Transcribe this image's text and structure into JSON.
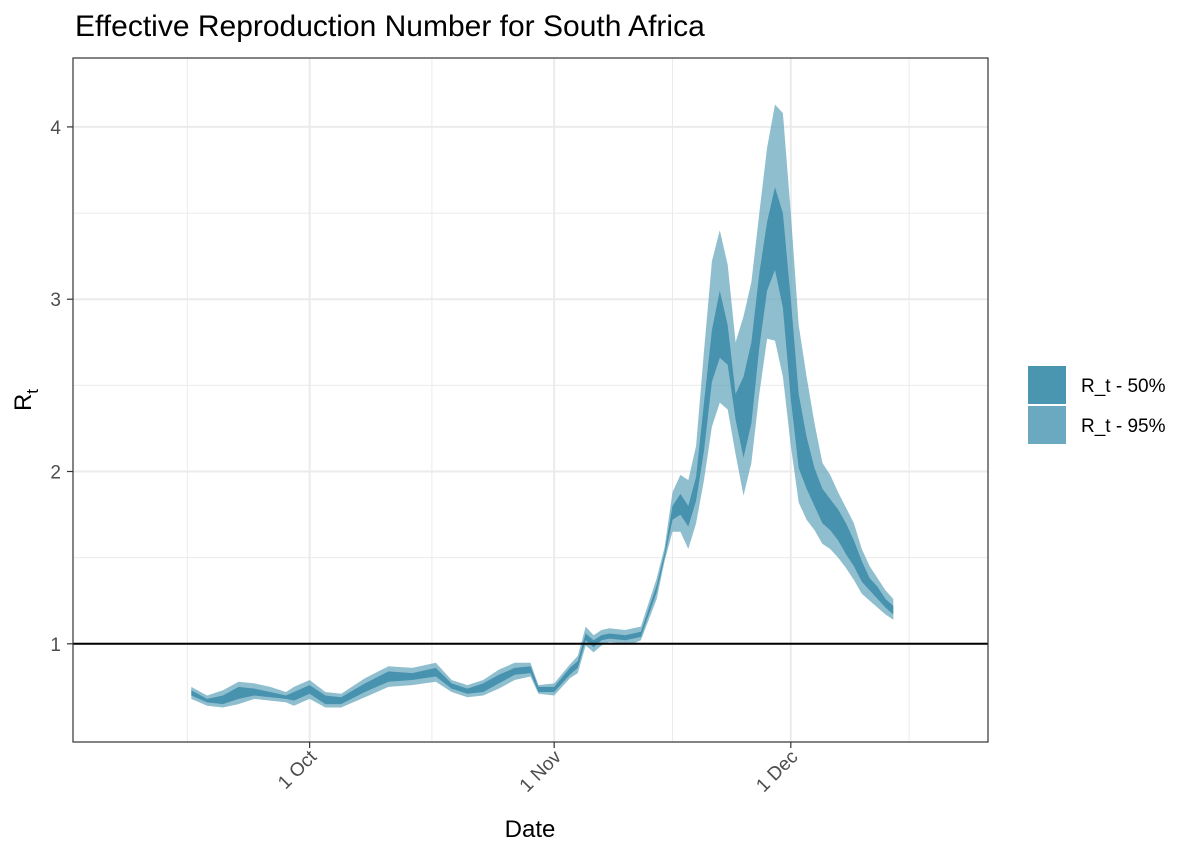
{
  "chart_data": {
    "type": "area",
    "title": "Effective Reproduction Number for South Africa",
    "xlabel": "Date",
    "ylabel": "R",
    "ylabel_subscript": "t",
    "xlim": [
      "2020-09-01",
      "2020-12-26"
    ],
    "ylim": [
      0.43,
      4.4
    ],
    "x_ticks": [
      {
        "date": "2020-10-01",
        "label": "1 Oct"
      },
      {
        "date": "2020-11-01",
        "label": "1 Nov"
      },
      {
        "date": "2020-12-01",
        "label": "1 Dec"
      }
    ],
    "y_ticks": [
      1,
      2,
      3,
      4
    ],
    "reference_line": 1,
    "grid": true,
    "legend": {
      "position": "right",
      "entries": [
        {
          "label": "R_t - 50%",
          "color": "#4a96b0"
        },
        {
          "label": "R_t - 95%",
          "color": "#6aa9bf"
        }
      ]
    },
    "colors": {
      "band_50": "#3b8aa8",
      "band_95": "#6aa9bf",
      "reference_line": "#000000",
      "grid": "#ebebeb"
    },
    "series": [
      {
        "name": "R_t - 95%",
        "x": [
          "2020-09-16",
          "2020-09-18",
          "2020-09-20",
          "2020-09-22",
          "2020-09-24",
          "2020-09-26",
          "2020-09-28",
          "2020-09-29",
          "2020-10-01",
          "2020-10-03",
          "2020-10-05",
          "2020-10-08",
          "2020-10-11",
          "2020-10-14",
          "2020-10-17",
          "2020-10-19",
          "2020-10-21",
          "2020-10-23",
          "2020-10-25",
          "2020-10-27",
          "2020-10-29",
          "2020-10-30",
          "2020-11-01",
          "2020-11-03",
          "2020-11-04",
          "2020-11-05",
          "2020-11-06",
          "2020-11-07",
          "2020-11-08",
          "2020-11-10",
          "2020-11-11",
          "2020-11-12",
          "2020-11-14",
          "2020-11-15",
          "2020-11-16",
          "2020-11-17",
          "2020-11-18",
          "2020-11-19",
          "2020-11-20",
          "2020-11-21",
          "2020-11-22",
          "2020-11-23",
          "2020-11-24",
          "2020-11-25",
          "2020-11-26",
          "2020-11-27",
          "2020-11-28",
          "2020-11-29",
          "2020-11-30",
          "2020-12-01",
          "2020-12-02",
          "2020-12-03",
          "2020-12-04",
          "2020-12-05",
          "2020-12-06",
          "2020-12-07",
          "2020-12-08",
          "2020-12-09",
          "2020-12-10",
          "2020-12-11",
          "2020-12-12",
          "2020-12-13",
          "2020-12-14"
        ],
        "upper": [
          0.75,
          0.7,
          0.73,
          0.78,
          0.77,
          0.75,
          0.72,
          0.75,
          0.79,
          0.72,
          0.71,
          0.8,
          0.87,
          0.86,
          0.89,
          0.79,
          0.76,
          0.79,
          0.85,
          0.89,
          0.89,
          0.76,
          0.77,
          0.88,
          0.93,
          1.1,
          1.05,
          1.08,
          1.09,
          1.08,
          1.09,
          1.1,
          1.38,
          1.56,
          1.88,
          1.98,
          1.95,
          2.15,
          2.7,
          3.22,
          3.4,
          3.2,
          2.75,
          2.9,
          3.1,
          3.5,
          3.88,
          4.13,
          4.08,
          3.5,
          2.85,
          2.55,
          2.28,
          2.05,
          1.98,
          1.88,
          1.79,
          1.7,
          1.55,
          1.45,
          1.38,
          1.31,
          1.26
        ],
        "lower": [
          0.68,
          0.64,
          0.63,
          0.65,
          0.68,
          0.67,
          0.66,
          0.64,
          0.68,
          0.63,
          0.63,
          0.69,
          0.75,
          0.76,
          0.78,
          0.72,
          0.69,
          0.7,
          0.74,
          0.79,
          0.81,
          0.71,
          0.7,
          0.8,
          0.83,
          0.99,
          0.95,
          0.99,
          1.01,
          1.0,
          1.0,
          1.02,
          1.26,
          1.48,
          1.65,
          1.65,
          1.55,
          1.7,
          1.95,
          2.26,
          2.4,
          2.36,
          2.1,
          1.86,
          2.05,
          2.45,
          2.77,
          2.76,
          2.55,
          2.15,
          1.82,
          1.72,
          1.66,
          1.58,
          1.55,
          1.5,
          1.44,
          1.37,
          1.29,
          1.25,
          1.21,
          1.17,
          1.14
        ]
      },
      {
        "name": "R_t - 50%",
        "x": [
          "2020-09-16",
          "2020-09-18",
          "2020-09-20",
          "2020-09-22",
          "2020-09-24",
          "2020-09-26",
          "2020-09-28",
          "2020-09-29",
          "2020-10-01",
          "2020-10-03",
          "2020-10-05",
          "2020-10-08",
          "2020-10-11",
          "2020-10-14",
          "2020-10-17",
          "2020-10-19",
          "2020-10-21",
          "2020-10-23",
          "2020-10-25",
          "2020-10-27",
          "2020-10-29",
          "2020-10-30",
          "2020-11-01",
          "2020-11-03",
          "2020-11-04",
          "2020-11-05",
          "2020-11-06",
          "2020-11-07",
          "2020-11-08",
          "2020-11-10",
          "2020-11-11",
          "2020-11-12",
          "2020-11-14",
          "2020-11-15",
          "2020-11-16",
          "2020-11-17",
          "2020-11-18",
          "2020-11-19",
          "2020-11-20",
          "2020-11-21",
          "2020-11-22",
          "2020-11-23",
          "2020-11-24",
          "2020-11-25",
          "2020-11-26",
          "2020-11-27",
          "2020-11-28",
          "2020-11-29",
          "2020-11-30",
          "2020-12-01",
          "2020-12-02",
          "2020-12-03",
          "2020-12-04",
          "2020-12-05",
          "2020-12-06",
          "2020-12-07",
          "2020-12-08",
          "2020-12-09",
          "2020-12-10",
          "2020-12-11",
          "2020-12-12",
          "2020-12-13",
          "2020-12-14"
        ],
        "upper": [
          0.73,
          0.68,
          0.7,
          0.75,
          0.74,
          0.72,
          0.7,
          0.72,
          0.76,
          0.7,
          0.69,
          0.77,
          0.84,
          0.83,
          0.86,
          0.77,
          0.74,
          0.77,
          0.82,
          0.86,
          0.87,
          0.75,
          0.75,
          0.86,
          0.9,
          1.06,
          1.02,
          1.05,
          1.06,
          1.05,
          1.06,
          1.07,
          1.34,
          1.53,
          1.8,
          1.87,
          1.8,
          1.97,
          2.4,
          2.82,
          3.05,
          2.85,
          2.45,
          2.55,
          2.75,
          3.15,
          3.45,
          3.65,
          3.5,
          3.0,
          2.45,
          2.2,
          2.02,
          1.9,
          1.84,
          1.78,
          1.7,
          1.6,
          1.48,
          1.38,
          1.33,
          1.26,
          1.22
        ],
        "lower": [
          0.7,
          0.66,
          0.65,
          0.68,
          0.7,
          0.69,
          0.68,
          0.67,
          0.71,
          0.65,
          0.65,
          0.72,
          0.78,
          0.79,
          0.81,
          0.74,
          0.71,
          0.72,
          0.77,
          0.82,
          0.83,
          0.72,
          0.72,
          0.82,
          0.86,
          1.02,
          0.98,
          1.02,
          1.03,
          1.02,
          1.03,
          1.04,
          1.3,
          1.5,
          1.72,
          1.75,
          1.68,
          1.83,
          2.12,
          2.52,
          2.66,
          2.62,
          2.3,
          2.08,
          2.28,
          2.72,
          3.05,
          3.17,
          2.95,
          2.42,
          2.02,
          1.9,
          1.8,
          1.7,
          1.66,
          1.6,
          1.52,
          1.45,
          1.36,
          1.31,
          1.26,
          1.21,
          1.17
        ]
      }
    ]
  }
}
